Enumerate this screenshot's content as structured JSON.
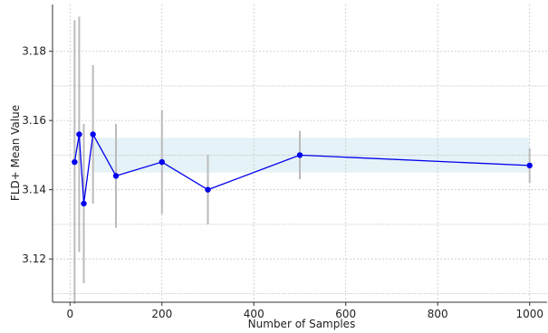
{
  "chart_data": {
    "type": "line",
    "title": "",
    "xlabel": "Number of Samples",
    "ylabel": "FLD+ Mean Value",
    "xlim": [
      -38,
      1038
    ],
    "ylim": [
      3.1075,
      3.1935
    ],
    "xticks": [
      0,
      200,
      400,
      600,
      800,
      1000
    ],
    "yticks": [
      3.12,
      3.14,
      3.16,
      3.18
    ],
    "xtick_labels": [
      "0",
      "200",
      "400",
      "600",
      "800",
      "1000"
    ],
    "ytick_labels": [
      "3.12",
      "3.14",
      "3.16",
      "3.18"
    ],
    "grid": true,
    "grid_style": "dotted",
    "extra_hgrid": [
      3.11,
      3.13,
      3.15,
      3.17
    ],
    "series": [
      {
        "color": "#0000ee",
        "x": [
          10,
          20,
          30,
          50,
          100,
          200,
          300,
          500,
          1000
        ],
        "y": [
          3.148,
          3.156,
          3.136,
          3.156,
          3.144,
          3.148,
          3.14,
          3.15,
          3.147
        ],
        "y_low": [
          3.107,
          3.122,
          3.113,
          3.136,
          3.129,
          3.133,
          3.13,
          3.143,
          3.142
        ],
        "y_high": [
          3.189,
          3.19,
          3.159,
          3.176,
          3.159,
          3.163,
          3.15,
          3.157,
          3.152
        ]
      }
    ],
    "band": {
      "x": [
        50,
        1000
      ],
      "y": [
        3.145,
        3.155
      ],
      "color": "#add8e6"
    },
    "errorbar_color": "#bbbbbb"
  }
}
